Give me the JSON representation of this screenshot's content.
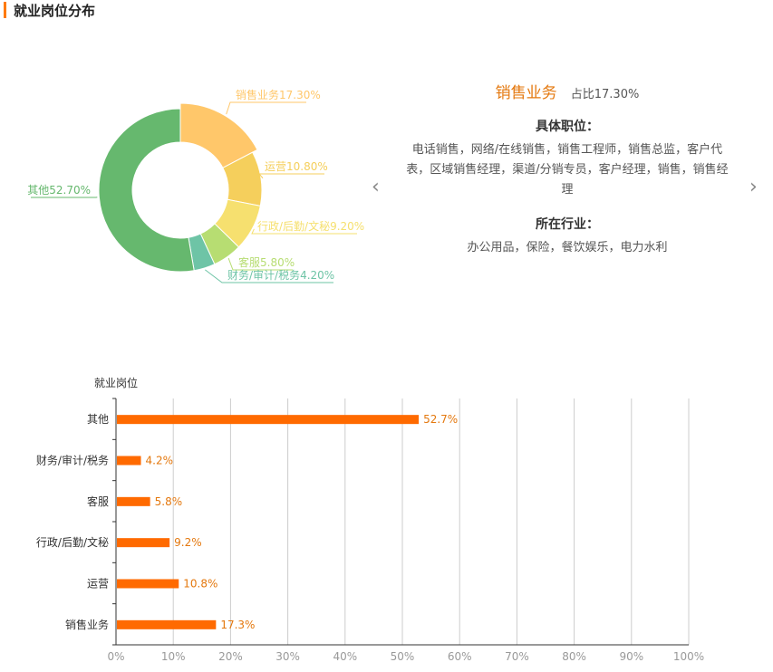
{
  "section": {
    "title": "就业岗位分布"
  },
  "detail": {
    "name": "销售业务",
    "ratio": "占比17.30%",
    "positions_title": "具体职位：",
    "positions_text": "电话销售，网络/在线销售，销售工程师，销售总监，客户代表，区域销售经理，渠道/分销专员，客户经理，销售，销售经理",
    "industry_title": "所在行业：",
    "industry_text": "办公用品，保险，餐饮娱乐，电力水利"
  },
  "nav": {
    "prev": "‹",
    "next": "›"
  },
  "chart_data": [
    {
      "type": "pie",
      "subtype": "donut",
      "labels": [
        "销售业务",
        "运营",
        "行政/后勤/文秘",
        "客服",
        "财务/审计/税务",
        "其他"
      ],
      "values": [
        17.3,
        10.8,
        9.2,
        5.8,
        4.2,
        52.7
      ],
      "data_labels": [
        "销售业务17.30%",
        "运营10.80%",
        "行政/后勤/文秘9.20%",
        "客服5.80%",
        "财务/审计/税务4.20%",
        "其他52.70%"
      ],
      "colors": [
        "#ffc76a",
        "#f5cf5c",
        "#f6e06f",
        "#b7dd72",
        "#6ec4a6",
        "#66b86e"
      ]
    },
    {
      "type": "bar",
      "orientation": "horizontal",
      "ylabel": "就业岗位",
      "categories": [
        "其他",
        "财务/审计/税务",
        "客服",
        "行政/后勤/文秘",
        "运营",
        "销售业务"
      ],
      "values": [
        52.7,
        4.2,
        5.8,
        9.2,
        10.8,
        17.3
      ],
      "data_labels": [
        "52.7%",
        "4.2%",
        "5.8%",
        "9.2%",
        "10.8%",
        "17.3%"
      ],
      "xlim": [
        0,
        100
      ],
      "x_ticks": [
        "0%",
        "10%",
        "20%",
        "30%",
        "40%",
        "50%",
        "60%",
        "70%",
        "80%",
        "90%",
        "100%"
      ],
      "grid": true,
      "color": "#ff6a00",
      "label_color": "#e4780e"
    }
  ]
}
